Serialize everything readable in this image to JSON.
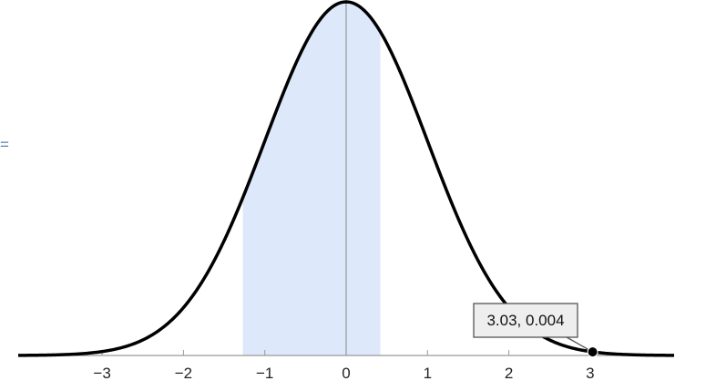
{
  "edge_fragment": "=",
  "chart_data": {
    "type": "area",
    "title": "",
    "xlabel": "",
    "ylabel": "",
    "curve": "standard normal probability density",
    "mean": 0,
    "sd": 1,
    "xlim": [
      -4.2,
      4.0
    ],
    "ylim": [
      0,
      0.4
    ],
    "xticks": [
      -3,
      -2,
      -1,
      0,
      1,
      2,
      3
    ],
    "xtick_labels": [
      "−3",
      "−2",
      "−1",
      "0",
      "1",
      "2",
      "3"
    ],
    "shaded_interval": [
      -1.27,
      0.42
    ],
    "grid": false,
    "marked_point": {
      "x": 3.03,
      "y": 0.004,
      "label": "3.03, 0.004"
    },
    "colors": {
      "curve": "#000000",
      "shade": "#dde9fb",
      "axis": "#999999",
      "tooltip_bg": "#eeeeee",
      "tooltip_border": "#555555"
    }
  }
}
